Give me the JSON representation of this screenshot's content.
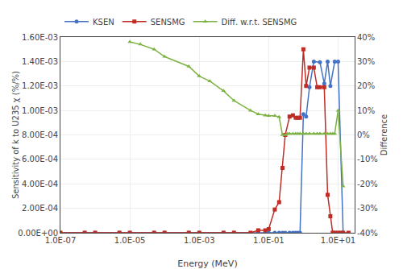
{
  "chart_data": {
    "type": "line",
    "xlabel": "Energy (MeV)",
    "ylabel": "Sensitivity of k to U235 χ (%/%)",
    "y2label": "Difference",
    "log": "x",
    "grid": true,
    "legend": "upper left",
    "xlim": [
      1e-07,
      30.0
    ],
    "xticks": [
      {
        "value": 1e-07,
        "label": "1.0E-07"
      },
      {
        "value": 1e-05,
        "label": "1.0E-05"
      },
      {
        "value": 0.001,
        "label": "1.0E-03"
      },
      {
        "value": 0.1,
        "label": "1.0E-01"
      },
      {
        "value": 10.0,
        "label": "1.0E+01"
      }
    ],
    "ylim": [
      0,
      0.0016
    ],
    "yticks": [
      {
        "value": 0,
        "label": "0.00E+00"
      },
      {
        "value": 0.0002,
        "label": "2.00E-04"
      },
      {
        "value": 0.0004,
        "label": "4.00E-04"
      },
      {
        "value": 0.0006,
        "label": "6.00E-04"
      },
      {
        "value": 0.0008,
        "label": "8.00E-04"
      },
      {
        "value": 0.001,
        "label": "1.00E-03"
      },
      {
        "value": 0.0012,
        "label": "1.20E-03"
      },
      {
        "value": 0.0014,
        "label": "1.40E-03"
      },
      {
        "value": 0.0016,
        "label": "1.60E-03"
      }
    ],
    "y2lim": [
      -0.4,
      0.4
    ],
    "y2ticks": [
      {
        "value": -0.4,
        "label": "-40%"
      },
      {
        "value": -0.3,
        "label": "-30%"
      },
      {
        "value": -0.2,
        "label": "-20%"
      },
      {
        "value": -0.1,
        "label": "-10%"
      },
      {
        "value": 0.0,
        "label": "0%"
      },
      {
        "value": 0.1,
        "label": "10%"
      },
      {
        "value": 0.2,
        "label": "20%"
      },
      {
        "value": 0.3,
        "label": "30%"
      },
      {
        "value": 0.4,
        "label": "40%"
      }
    ],
    "series": [
      {
        "name": "KSEN",
        "color": "#4472C4",
        "marker": "circle",
        "axis": "y",
        "x": [
          1e-07,
          5e-07,
          1e-06,
          5e-06,
          1e-05,
          5e-05,
          0.0001,
          0.0005,
          0.001,
          0.005,
          0.01,
          0.05,
          0.08,
          0.1,
          0.15,
          0.2,
          0.25,
          0.3,
          0.4,
          0.5,
          0.6,
          0.7,
          0.8,
          1.0,
          1.2,
          1.5,
          2.0,
          3.0,
          4.0,
          5.0,
          6.0,
          8.0,
          10.0,
          14.0
        ],
        "values": [
          0,
          0,
          0,
          0,
          0,
          0,
          0,
          0,
          0,
          0,
          0,
          0,
          0,
          0,
          0,
          0,
          0,
          0,
          0,
          0,
          0,
          0,
          0,
          0.00097,
          0.00095,
          0.00119,
          0.0014,
          0.001395,
          0.00122,
          0.0014,
          0.0012,
          0.0014,
          0.0014,
          0
        ]
      },
      {
        "name": "SENSMG",
        "color": "#BE2D25",
        "marker": "square",
        "axis": "y",
        "x": [
          1e-07,
          5e-07,
          1e-06,
          5e-06,
          1e-05,
          5e-05,
          0.0001,
          0.0005,
          0.001,
          0.005,
          0.01,
          0.03,
          0.05,
          0.08,
          0.1,
          0.15,
          0.2,
          0.25,
          0.3,
          0.4,
          0.5,
          0.6,
          0.7,
          0.8,
          1.0,
          1.2,
          1.5,
          2.0,
          2.5,
          3.0,
          4.0,
          5.0,
          6.0,
          7.0,
          8.0,
          10.0,
          12.0,
          14.0,
          20.0
        ],
        "values": [
          0,
          0,
          0,
          0,
          0,
          0,
          0,
          0,
          0,
          0,
          0,
          0,
          2e-05,
          2e-05,
          3e-05,
          0.00019,
          0.00025,
          0.00053,
          0.0008,
          0.00095,
          0.00096,
          0.00094,
          0.00094,
          0.00094,
          0.0015,
          0.0012,
          0.00135,
          0.00135,
          0.00119,
          0.00119,
          0.00119,
          0.00031,
          0.000135,
          0,
          0,
          0,
          0,
          0,
          0
        ]
      },
      {
        "name": "Diff. w.r.t. SENSMG",
        "color": "#7CB342",
        "marker": "triangle-up",
        "axis": "y2",
        "x": [
          1e-05,
          2e-05,
          5e-05,
          0.0001,
          0.0005,
          0.001,
          0.002,
          0.005,
          0.01,
          0.03,
          0.05,
          0.08,
          0.1,
          0.15,
          0.2,
          0.25,
          0.3,
          0.35,
          0.4,
          0.5,
          0.6,
          0.7,
          0.8,
          1.0,
          1.2,
          1.5,
          2.0,
          2.5,
          3.0,
          4.0,
          5.0,
          6.0,
          7.0,
          8.0,
          10.0,
          14.0
        ],
        "values": [
          0.38,
          0.37,
          0.35,
          0.32,
          0.28,
          0.24,
          0.22,
          0.18,
          0.14,
          0.1,
          0.085,
          0.08,
          0.078,
          0.078,
          0.073,
          0.0,
          0.0,
          0.005,
          0.005,
          0.005,
          0.005,
          0.005,
          0.005,
          0.005,
          0.005,
          0.005,
          0.005,
          0.005,
          0.005,
          0.005,
          0.005,
          0.005,
          0.005,
          0.005,
          0.1,
          -0.21
        ]
      }
    ]
  }
}
